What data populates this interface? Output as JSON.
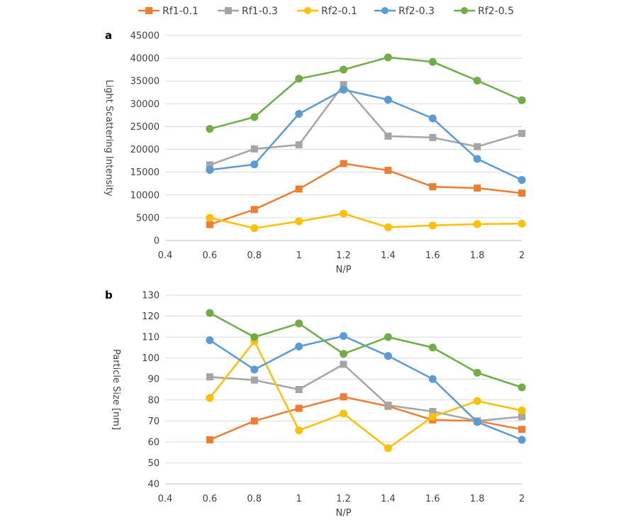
{
  "legend": {
    "items": [
      {
        "label": "Rf1-0.1",
        "color": "#ED7D31",
        "marker": "square"
      },
      {
        "label": "Rf1-0.3",
        "color": "#A5A5A5",
        "marker": "square"
      },
      {
        "label": "Rf2-0.1",
        "color": "#FFC000",
        "marker": "circle"
      },
      {
        "label": "Rf2-0.3",
        "color": "#5B9BD5",
        "marker": "circle"
      },
      {
        "label": "Rf2-0.5",
        "color": "#70AD47",
        "marker": "circle"
      }
    ],
    "placement": "top"
  },
  "chart_data": [
    {
      "type": "line",
      "panel": "a",
      "xlabel": "N/P",
      "ylabel": "Light Scattering Intensity",
      "xlim": [
        0.4,
        2
      ],
      "ylim": [
        0,
        45000
      ],
      "xticks": [
        "0.4",
        "0.6",
        "0.8",
        "1",
        "1.2",
        "1.4",
        "1.6",
        "1.8",
        "2"
      ],
      "yticks": [
        "0",
        "5000",
        "10000",
        "15000",
        "20000",
        "25000",
        "30000",
        "35000",
        "40000",
        "45000"
      ],
      "grid": true,
      "x": [
        0.6,
        0.8,
        1.0,
        1.2,
        1.4,
        1.6,
        1.8,
        2.0
      ],
      "series": [
        {
          "name": "Rf1-0.1",
          "values": [
            3500,
            6800,
            11300,
            16900,
            15400,
            11800,
            11500,
            10400
          ]
        },
        {
          "name": "Rf1-0.3",
          "values": [
            16600,
            20100,
            21000,
            34200,
            22900,
            22600,
            20600,
            23500
          ]
        },
        {
          "name": "Rf2-0.1",
          "values": [
            5000,
            2700,
            4200,
            5900,
            2900,
            3300,
            3600,
            3700
          ]
        },
        {
          "name": "Rf2-0.3",
          "values": [
            15500,
            16700,
            27800,
            33100,
            30900,
            26800,
            17900,
            13300
          ]
        },
        {
          "name": "Rf2-0.5",
          "values": [
            24500,
            27100,
            35500,
            37500,
            40200,
            39200,
            35100,
            30800
          ]
        }
      ]
    },
    {
      "type": "line",
      "panel": "b",
      "xlabel": "N/P",
      "ylabel": "Particle Size [nm]",
      "xlim": [
        0.4,
        2
      ],
      "ylim": [
        40,
        130
      ],
      "xticks": [
        "0.4",
        "0.6",
        "0.8",
        "1",
        "1.2",
        "1.4",
        "1.6",
        "1.8",
        "2"
      ],
      "yticks": [
        "40",
        "50",
        "60",
        "70",
        "80",
        "90",
        "100",
        "110",
        "120",
        "130"
      ],
      "grid": true,
      "x": [
        0.6,
        0.8,
        1.0,
        1.2,
        1.4,
        1.6,
        1.8,
        2.0
      ],
      "series": [
        {
          "name": "Rf1-0.1",
          "values": [
            61,
            70,
            76,
            81.5,
            77,
            70.5,
            70,
            66
          ]
        },
        {
          "name": "Rf1-0.3",
          "values": [
            91,
            89.5,
            85,
            97,
            77.5,
            74.5,
            70,
            72
          ]
        },
        {
          "name": "Rf2-0.1",
          "values": [
            81,
            108,
            65.5,
            73.5,
            57,
            72,
            79.5,
            75
          ]
        },
        {
          "name": "Rf2-0.3",
          "values": [
            108.5,
            94.5,
            105.5,
            110.5,
            101,
            90,
            69.5,
            61
          ]
        },
        {
          "name": "Rf2-0.5",
          "values": [
            121.5,
            110,
            116.5,
            102,
            110,
            105,
            93,
            86
          ]
        }
      ]
    }
  ]
}
